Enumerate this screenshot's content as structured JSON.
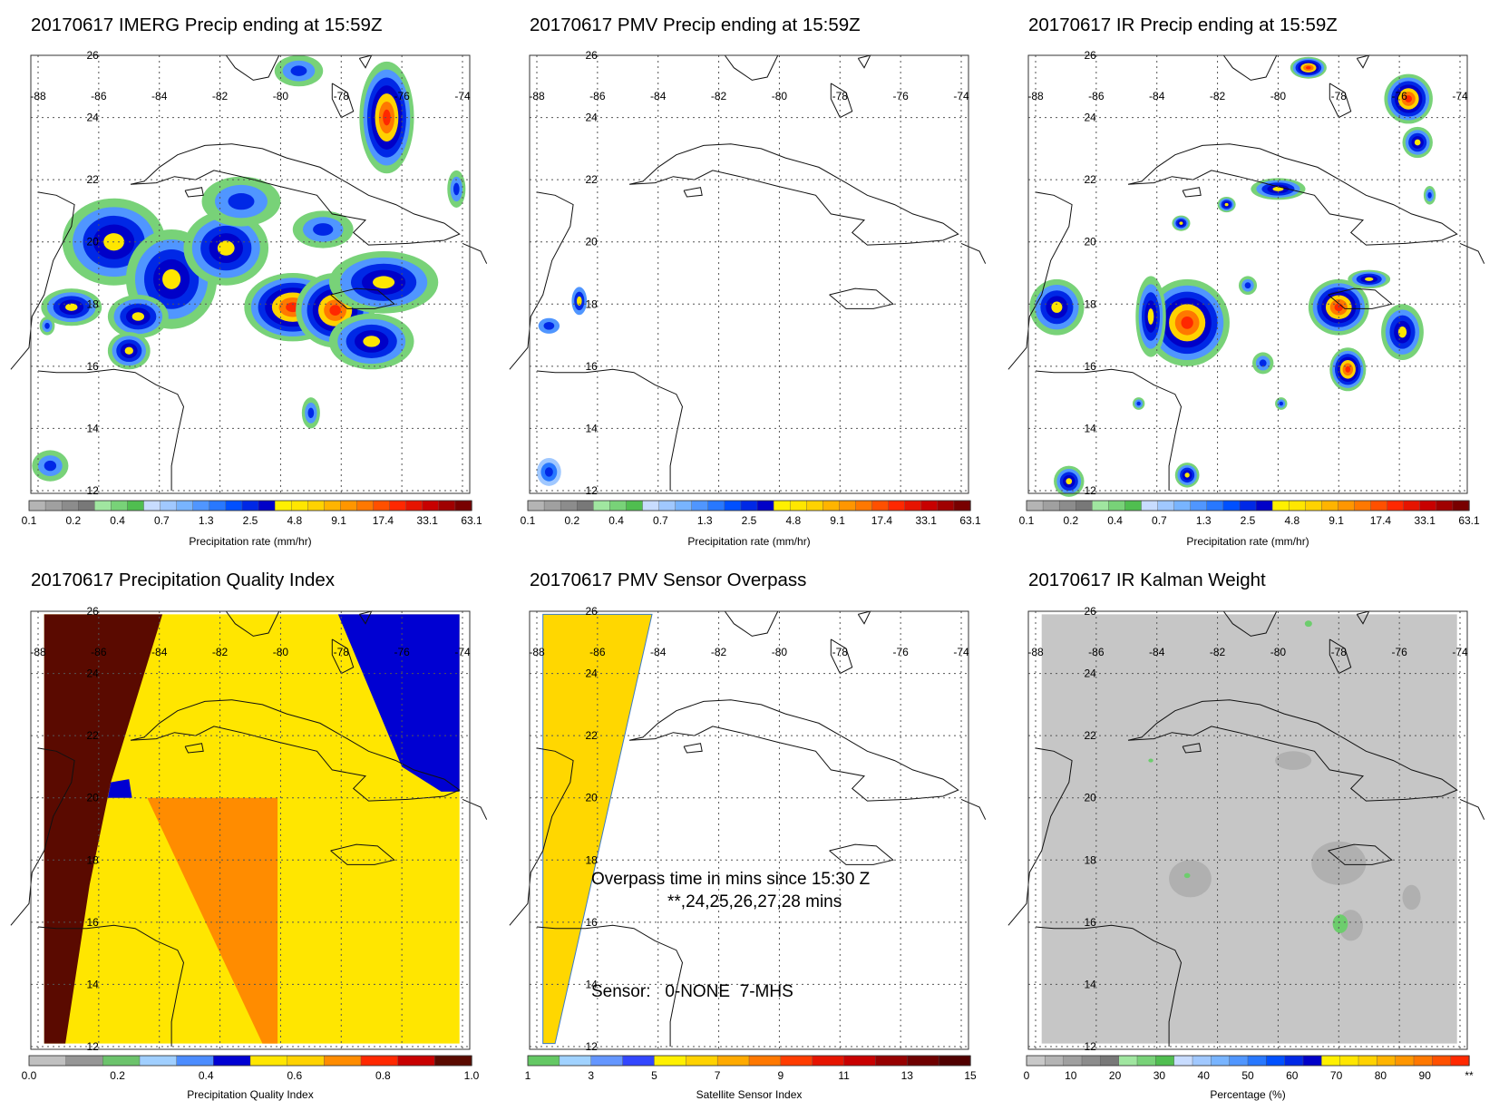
{
  "panels": [
    {
      "id": "imerg",
      "title": "20170617 IMERG Precip ending at 15:59Z",
      "colorbar": {
        "label": "Precipitation rate (mm/hr)",
        "ticks": [
          "0.1",
          "0.2",
          "0.4",
          "0.7",
          "1.3",
          "2.5",
          "4.8",
          "9.1",
          "17.4",
          "33.1",
          "63.1"
        ]
      }
    },
    {
      "id": "pmv",
      "title": "20170617 PMV Precip ending at 15:59Z",
      "colorbar": {
        "label": "Precipitation rate (mm/hr)",
        "ticks": [
          "0.1",
          "0.2",
          "0.4",
          "0.7",
          "1.3",
          "2.5",
          "4.8",
          "9.1",
          "17.4",
          "33.1",
          "63.1"
        ]
      }
    },
    {
      "id": "ir",
      "title": "20170617 IR Precip ending at 15:59Z",
      "colorbar": {
        "label": "Precipitation rate (mm/hr)",
        "ticks": [
          "0.1",
          "0.2",
          "0.4",
          "0.7",
          "1.3",
          "2.5",
          "4.8",
          "9.1",
          "17.4",
          "33.1",
          "63.1"
        ]
      }
    },
    {
      "id": "pqi",
      "title": "20170617 Precipitation Quality Index",
      "colorbar": {
        "label": "Precipitation Quality Index",
        "ticks": [
          "0.0",
          "0.2",
          "0.4",
          "0.6",
          "0.8",
          "1.0"
        ]
      }
    },
    {
      "id": "sensor",
      "title": "20170617 PMV Sensor Overpass",
      "colorbar": {
        "label": "Satellite Sensor Index",
        "ticks": [
          "1",
          "3",
          "5",
          "7",
          "9",
          "11",
          "13",
          "15"
        ]
      },
      "annotations": {
        "overpass_line1": "Overpass time in mins since 15:30 Z",
        "overpass_line2": "**,24,25,26,27,28 mins",
        "sensor_line": "Sensor:   0-NONE  7-MHS"
      }
    },
    {
      "id": "kalman",
      "title": "20170617 IR Kalman Weight",
      "colorbar": {
        "label": "Percentage (%)",
        "ticks": [
          "0",
          "10",
          "20",
          "30",
          "40",
          "50",
          "60",
          "70",
          "80",
          "90",
          "**"
        ]
      }
    }
  ],
  "map_axes": {
    "lon_labels": [
      "-88",
      "-86",
      "-84",
      "-82",
      "-80",
      "-78",
      "-76",
      "-74"
    ],
    "lat_labels": [
      "26",
      "24",
      "22",
      "20",
      "18",
      "16",
      "14",
      "12"
    ]
  },
  "colors": {
    "precip_scale": [
      "#b4b4b4",
      "#a0a0a0",
      "#8c8c8c",
      "#787878",
      "#a0e6a0",
      "#78d278",
      "#50be50",
      "#c8dcff",
      "#a0c8ff",
      "#78b4ff",
      "#5096ff",
      "#2878ff",
      "#0050ff",
      "#0028e6",
      "#0000c8",
      "#fff000",
      "#ffe600",
      "#ffd200",
      "#ffb400",
      "#ff9600",
      "#ff7800",
      "#ff5000",
      "#ff2800",
      "#e61400",
      "#c80000",
      "#a00000",
      "#780000"
    ],
    "pqi_scale": [
      "#c0c0c0",
      "#969696",
      "#6cc36c",
      "#a0cfff",
      "#4b8cff",
      "#0000d2",
      "#ffe600",
      "#ffd200",
      "#ff8c00",
      "#ff2800",
      "#c80000",
      "#5a0a00"
    ],
    "sensor_scale": [
      "#64c864",
      "#a0d2ff",
      "#6496ff",
      "#3246ff",
      "#fff000",
      "#ffd200",
      "#ffaa00",
      "#ff7800",
      "#ff3c00",
      "#e61400",
      "#c80000",
      "#960000",
      "#6e0000",
      "#500000"
    ],
    "kalman_scale": [
      "#c8c8c8",
      "#b4b4b4",
      "#a0a0a0",
      "#8c8c8c",
      "#787878",
      "#a0e6a0",
      "#78d278",
      "#50be50",
      "#c8dcff",
      "#a0c8ff",
      "#78b4ff",
      "#5096ff",
      "#2878ff",
      "#0050ff",
      "#0028e6",
      "#0000c8",
      "#fff000",
      "#ffe600",
      "#ffd200",
      "#ffb400",
      "#ff9600",
      "#ff7800",
      "#ff5000",
      "#ff2800"
    ]
  }
}
